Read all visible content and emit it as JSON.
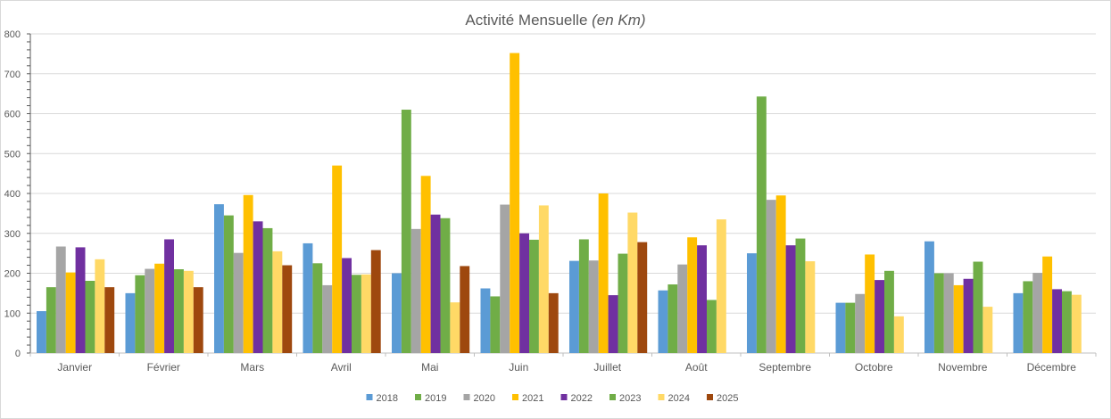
{
  "chart_data": {
    "type": "bar",
    "title": "Activité Mensuelle",
    "title_unit": "(en Km)",
    "xlabel": "",
    "ylabel": "",
    "ylim": [
      0,
      800
    ],
    "yticks": [
      0,
      100,
      200,
      300,
      400,
      500,
      600,
      700,
      800
    ],
    "grid": true,
    "legend_position": "bottom",
    "categories": [
      "Janvier",
      "Février",
      "Mars",
      "Avril",
      "Mai",
      "Juin",
      "Juillet",
      "Août",
      "Septembre",
      "Octobre",
      "Novembre",
      "Décembre"
    ],
    "series": [
      {
        "name": "2018",
        "color": "#5b9bd5",
        "values": [
          105,
          150,
          373,
          275,
          200,
          162,
          231,
          157,
          250,
          126,
          280,
          150
        ]
      },
      {
        "name": "2019",
        "color": "#70ad47",
        "values": [
          165,
          195,
          345,
          225,
          610,
          142,
          285,
          172,
          643,
          126,
          200,
          180
        ]
      },
      {
        "name": "2020",
        "color": "#a5a5a5",
        "values": [
          267,
          211,
          251,
          170,
          311,
          372,
          232,
          222,
          384,
          148,
          200,
          201
        ]
      },
      {
        "name": "2021",
        "color": "#ffc000",
        "values": [
          202,
          224,
          396,
          470,
          444,
          752,
          400,
          290,
          395,
          247,
          170,
          242
        ]
      },
      {
        "name": "2022",
        "color": "#7030a0",
        "values": [
          265,
          285,
          330,
          238,
          347,
          300,
          145,
          270,
          270,
          183,
          186,
          160
        ]
      },
      {
        "name": "2023",
        "color": "#70ad47",
        "values": [
          181,
          210,
          313,
          196,
          338,
          284,
          249,
          133,
          287,
          206,
          229,
          155
        ]
      },
      {
        "name": "2024",
        "color": "#ffd966",
        "values": [
          235,
          206,
          255,
          197,
          127,
          370,
          352,
          335,
          230,
          92,
          116,
          146
        ]
      },
      {
        "name": "2025",
        "color": "#9e480e",
        "values": [
          165,
          165,
          220,
          258,
          218,
          150,
          278,
          null,
          null,
          null,
          null,
          null
        ]
      }
    ]
  }
}
